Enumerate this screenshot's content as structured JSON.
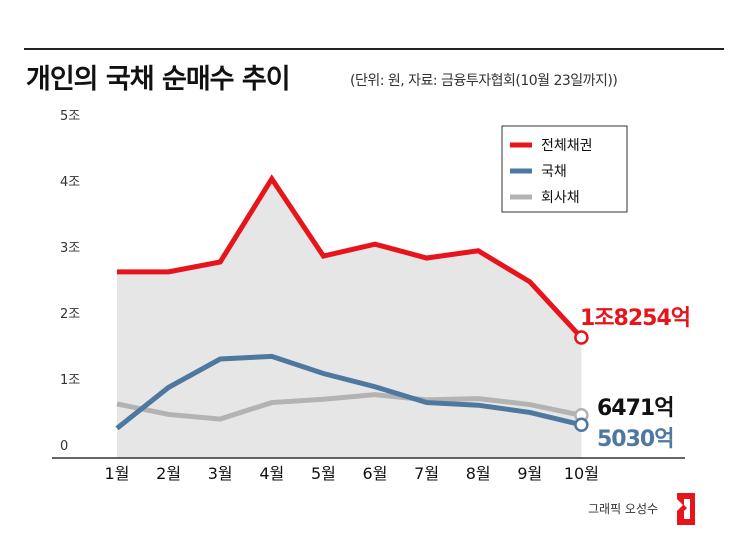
{
  "header": {
    "title": "개인의 국채 순매수 추이",
    "subtitle": "(단위: 원, 자료: 금융투자협회(10월 23일까지))"
  },
  "footer": {
    "credit": "그래픽 오성수"
  },
  "colors": {
    "total": "#e8141b",
    "gov": "#4e78a0",
    "corp": "#b3b3b3",
    "area": "#e6e6e6"
  },
  "chart_data": {
    "type": "line",
    "x": [
      "1월",
      "2월",
      "3월",
      "4월",
      "5월",
      "6월",
      "7월",
      "8월",
      "9월",
      "10월"
    ],
    "yticks": [
      "0",
      "1조",
      "2조",
      "3조",
      "4조",
      "5조"
    ],
    "ylim": [
      0,
      50000
    ],
    "value_unit": "억 원",
    "grid": false,
    "legend_position": "top-right",
    "series": [
      {
        "name": "전체채권",
        "key": "total",
        "values": [
          28200,
          28200,
          29700,
          42300,
          30600,
          32400,
          30300,
          31400,
          26700,
          18254
        ],
        "end_label": "1조8254억"
      },
      {
        "name": "국채",
        "key": "gov",
        "values": [
          4500,
          10700,
          15000,
          15400,
          12800,
          10800,
          8400,
          8000,
          6900,
          5030
        ],
        "end_label": "5030억"
      },
      {
        "name": "회사채",
        "key": "corp",
        "values": [
          8200,
          6600,
          5900,
          8400,
          8900,
          9600,
          8800,
          9000,
          8100,
          6471
        ],
        "end_label": "6471억"
      }
    ]
  }
}
